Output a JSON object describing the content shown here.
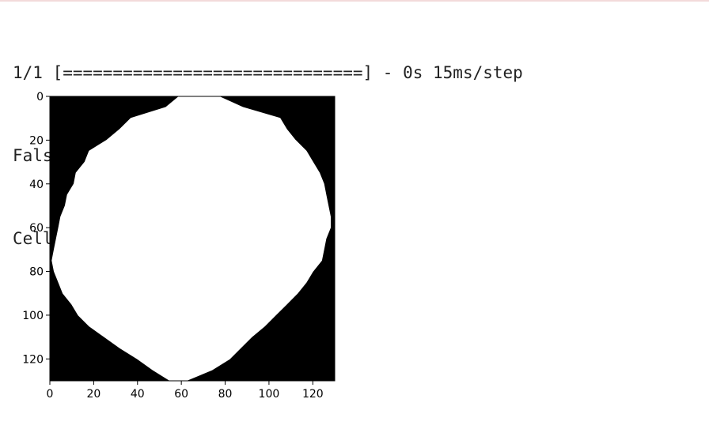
{
  "output": {
    "lines": [
      "1/1 [==============================] - 0s 15ms/step",
      "False",
      "Cell is PARASITIZED"
    ]
  },
  "chart_data": {
    "type": "heatmap",
    "title": "",
    "xlabel": "",
    "ylabel": "",
    "xlim": [
      0,
      130
    ],
    "ylim": [
      130,
      0
    ],
    "colormap": [
      "#000000",
      "#ffffff"
    ],
    "grid": false,
    "x_ticks": [
      0,
      20,
      40,
      60,
      80,
      100,
      120
    ],
    "y_ticks": [
      0,
      20,
      40,
      60,
      80,
      100,
      120
    ],
    "mask": {
      "description_units": "pixel rows of the 130x130 image",
      "row_extents": [
        [
          0,
          59,
          77
        ],
        [
          5,
          53,
          88
        ],
        [
          10,
          37,
          105
        ],
        [
          15,
          32,
          108
        ],
        [
          20,
          26,
          112
        ],
        [
          25,
          18,
          117
        ],
        [
          30,
          16,
          120
        ],
        [
          35,
          12,
          123
        ],
        [
          40,
          11,
          125
        ],
        [
          45,
          8,
          126
        ],
        [
          50,
          7,
          127
        ],
        [
          55,
          5,
          128
        ],
        [
          60,
          4,
          128
        ],
        [
          65,
          3,
          126
        ],
        [
          70,
          2,
          125
        ],
        [
          75,
          1,
          124
        ],
        [
          80,
          2,
          120
        ],
        [
          85,
          4,
          117
        ],
        [
          90,
          6,
          113
        ],
        [
          95,
          10,
          108
        ],
        [
          100,
          13,
          103
        ],
        [
          105,
          18,
          98
        ],
        [
          110,
          25,
          92
        ],
        [
          115,
          32,
          87
        ],
        [
          120,
          40,
          82
        ],
        [
          125,
          47,
          74
        ],
        [
          130,
          55,
          62
        ]
      ]
    }
  }
}
